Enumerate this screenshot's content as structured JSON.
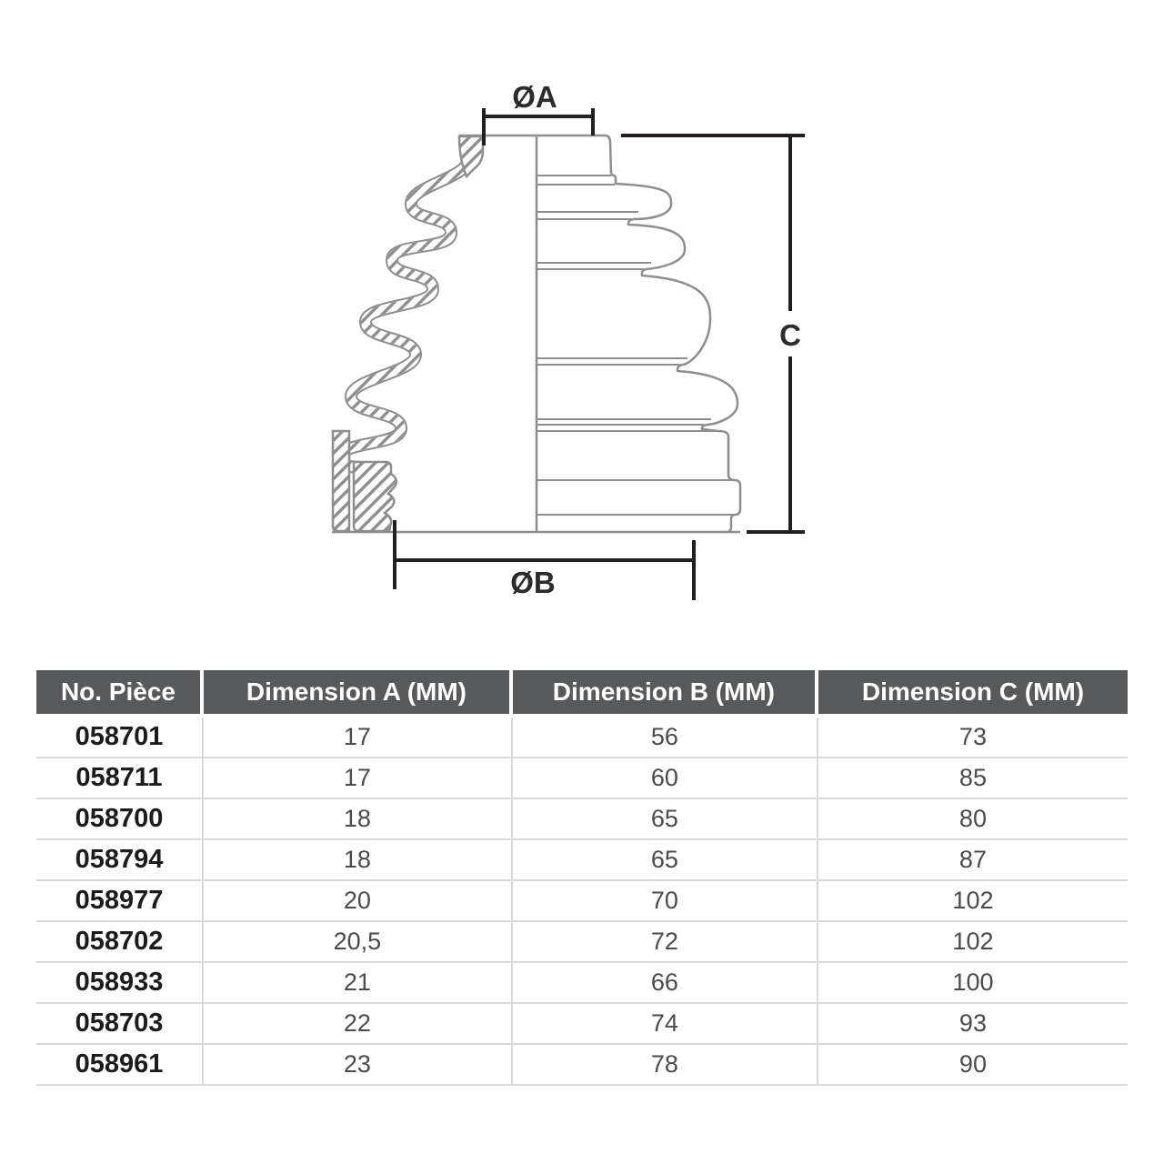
{
  "diagram": {
    "labels": {
      "dim_a": "ØA",
      "dim_b": "ØB",
      "dim_c": "C"
    }
  },
  "table": {
    "headers": [
      "No. Pièce",
      "Dimension A (MM)",
      "Dimension B (MM)",
      "Dimension C (MM)"
    ],
    "rows": [
      [
        "058701",
        "17",
        "56",
        "73"
      ],
      [
        "058711",
        "17",
        "60",
        "85"
      ],
      [
        "058700",
        "18",
        "65",
        "80"
      ],
      [
        "058794",
        "18",
        "65",
        "87"
      ],
      [
        "058977",
        "20",
        "70",
        "102"
      ],
      [
        "058702",
        "20,5",
        "72",
        "102"
      ],
      [
        "058933",
        "21",
        "66",
        "100"
      ],
      [
        "058703",
        "22",
        "74",
        "93"
      ],
      [
        "058961",
        "23",
        "78",
        "90"
      ]
    ]
  },
  "colors": {
    "header_bg": "#58595b",
    "dimension_line": "#231f20",
    "part_outline": "#8e8e8e",
    "row_divider": "#d9d9d9"
  }
}
